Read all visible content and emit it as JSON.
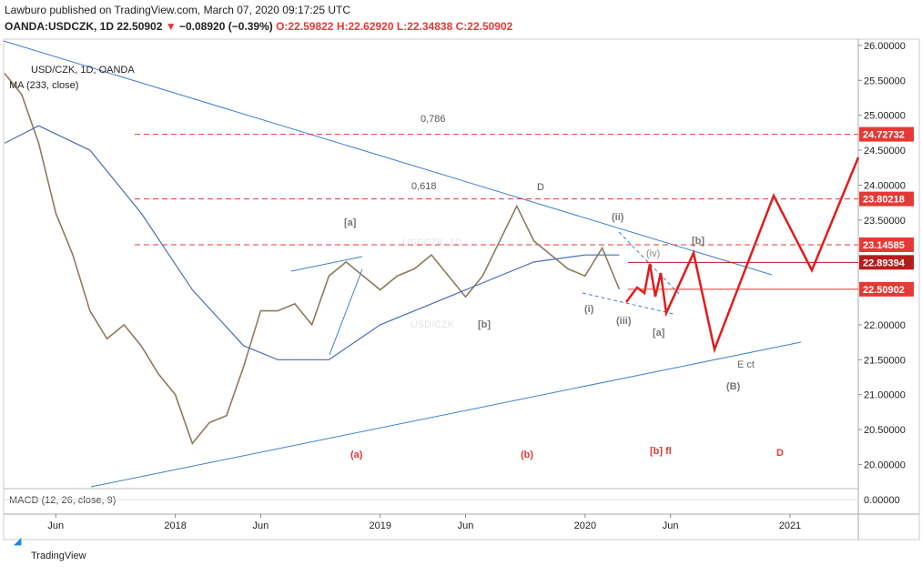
{
  "header": {
    "published": "Lawburo published on TradingView.com, March 07, 2020 09:17:25 UTC",
    "symbol": "OANDA:USDCZK, 1D",
    "last": "22.50902",
    "arrow": "▼",
    "change": "−0.08920 (−0.39%)",
    "ohlc": [
      "O:22.59822",
      "H:22.62920",
      "L:22.34838",
      "C:22.50902"
    ]
  },
  "chart_data": {
    "type": "line",
    "legend_title": "USD/CZK, 1D, OANDA",
    "watermark": [
      "USDCZK, 1D",
      "USD/CZK"
    ],
    "xlim": [
      "2017-03",
      "2021-05"
    ],
    "xticks": [
      {
        "value": "2017-06",
        "label": "Jun"
      },
      {
        "value": "2018-01",
        "label": "2018"
      },
      {
        "value": "2018-06",
        "label": "Jun"
      },
      {
        "value": "2019-01",
        "label": "2019"
      },
      {
        "value": "2019-06",
        "label": "Jun"
      },
      {
        "value": "2020-01",
        "label": "2020"
      },
      {
        "value": "2020-06",
        "label": "Jun"
      },
      {
        "value": "2021-01",
        "label": "2021"
      }
    ],
    "ylim": [
      19.68,
      26.09
    ],
    "yticks": [
      {
        "value": 26,
        "label": "26.00000"
      },
      {
        "value": 25.5,
        "label": "25.50000"
      },
      {
        "value": 25,
        "label": "25.00000"
      },
      {
        "value": 24.5,
        "label": "24.50000"
      },
      {
        "value": 24,
        "label": "24.00000"
      },
      {
        "value": 23.5,
        "label": "23.50000"
      },
      {
        "value": 22,
        "label": "22.00000"
      },
      {
        "value": 21.5,
        "label": "21.50000"
      },
      {
        "value": 21,
        "label": "21.00000"
      },
      {
        "value": 20.5,
        "label": "20.50000"
      },
      {
        "value": 20,
        "label": "20.00000"
      }
    ],
    "levels": [
      {
        "value": 24.72732,
        "color": "#e53935",
        "dashed": true
      },
      {
        "value": 23.80218,
        "color": "#e53935",
        "dashed": true
      },
      {
        "value": 23.14585,
        "color": "#e53935",
        "dashed": true
      },
      {
        "value": 22.89394,
        "color": "#b71c1c",
        "dashed": false
      },
      {
        "value": 22.50902,
        "color": "#e53935",
        "dashed": false
      }
    ],
    "series": [
      {
        "color": "#8d7b5c",
        "x": [
          "2017-03",
          "2017-04",
          "2017-05",
          "2017-06",
          "2017-07",
          "2017-08",
          "2017-09",
          "2017-10",
          "2017-11",
          "2017-12",
          "2018-01",
          "2018-02",
          "2018-03",
          "2018-04",
          "2018-05",
          "2018-06",
          "2018-07",
          "2018-08",
          "2018-09",
          "2018-10",
          "2018-11",
          "2018-12",
          "2019-01",
          "2019-02",
          "2019-03",
          "2019-04",
          "2019-05",
          "2019-06",
          "2019-07",
          "2019-08",
          "2019-09",
          "2019-10",
          "2019-11",
          "2019-12",
          "2020-01",
          "2020-02",
          "2020-03"
        ],
        "values": [
          25.6,
          25.3,
          24.6,
          23.6,
          23.0,
          22.2,
          21.8,
          22.0,
          21.7,
          21.3,
          21.0,
          20.3,
          20.6,
          20.7,
          21.4,
          22.2,
          22.2,
          22.3,
          22.0,
          22.7,
          22.9,
          22.7,
          22.5,
          22.7,
          22.8,
          23.0,
          22.7,
          22.4,
          22.7,
          23.2,
          23.7,
          23.2,
          23.0,
          22.8,
          22.7,
          23.1,
          22.50902
        ]
      },
      {
        "name": "MA (233, close)",
        "color": "#4a6fb5",
        "x": [
          "2017-03",
          "2017-05",
          "2017-08",
          "2017-11",
          "2018-02",
          "2018-05",
          "2018-07",
          "2018-10",
          "2019-01",
          "2019-04",
          "2019-07",
          "2019-10",
          "2020-01",
          "2020-03"
        ],
        "values": [
          24.6,
          24.85,
          24.5,
          23.6,
          22.5,
          21.7,
          21.5,
          21.5,
          22.0,
          22.3,
          22.6,
          22.9,
          23.0,
          23.0
        ]
      }
    ],
    "annotations": [
      "0,786",
      "0,618",
      "D",
      "[a]",
      "[b]",
      "(ii)",
      "(iv)",
      "[b]",
      "(i)",
      "(iii)",
      "[a]",
      "E ct",
      "(B)",
      "(a)",
      "(b)",
      "[b] fl",
      "D"
    ],
    "macd": {
      "title": "MACD (12, 26, close, 9)",
      "yticks": [
        {
          "value": 0,
          "label": "0.00000"
        }
      ]
    }
  },
  "footer": "TradingView"
}
